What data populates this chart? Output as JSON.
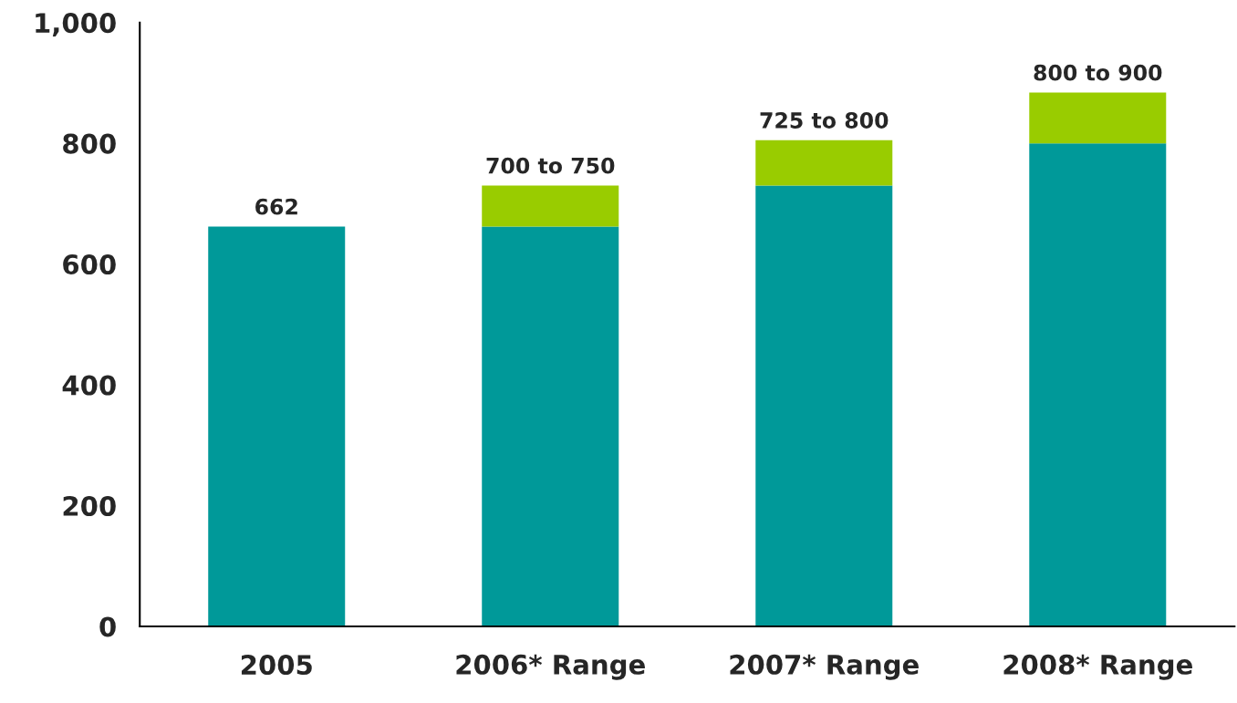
{
  "chart_data": {
    "type": "bar",
    "stacked": true,
    "categories": [
      "2005",
      "2006* Range",
      "2007* Range",
      "2008* Range"
    ],
    "series": [
      {
        "color": "#009999",
        "values": [
          662,
          662,
          730,
          800
        ]
      },
      {
        "color": "#99cc00",
        "values": [
          null,
          68,
          75,
          84
        ]
      }
    ],
    "totals": [
      "662",
      "700 to 750",
      "725 to 800",
      "800 to 900"
    ],
    "ylim": [
      0,
      1000
    ],
    "yticks": [
      0,
      200,
      400,
      600,
      800,
      {
        "value": 1000,
        "label": "1,000"
      }
    ],
    "grid": false,
    "legend": false
  }
}
